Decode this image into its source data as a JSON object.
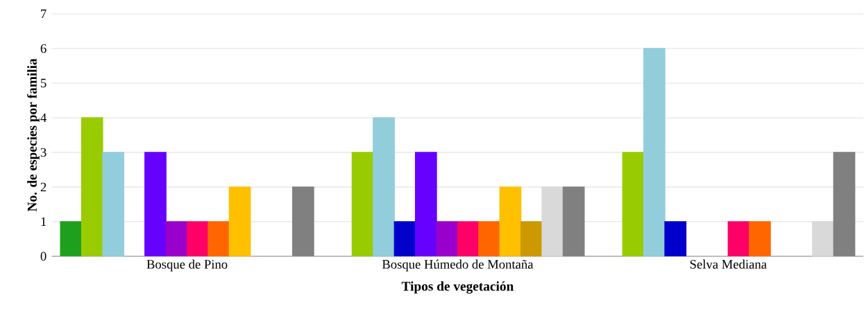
{
  "chart_data": {
    "type": "bar",
    "xlabel": "Tipos de vegetación",
    "ylabel": "No. de especies por familia",
    "categories": [
      "Bosque de Pino",
      "Bosque Húmedo de Montaña",
      "Selva Mediana"
    ],
    "series": [
      {
        "color": "#1ea01e",
        "values": [
          1,
          null,
          null
        ]
      },
      {
        "color": "#99cc00",
        "values": [
          4,
          3,
          3
        ]
      },
      {
        "color": "#92cddc",
        "values": [
          3,
          4,
          6
        ]
      },
      {
        "color": "#0000cc",
        "values": [
          null,
          1,
          1
        ]
      },
      {
        "color": "#6600ff",
        "values": [
          3,
          3,
          null
        ]
      },
      {
        "color": "#9900cc",
        "values": [
          1,
          1,
          null
        ]
      },
      {
        "color": "#ff0066",
        "values": [
          1,
          1,
          1
        ]
      },
      {
        "color": "#ff6600",
        "values": [
          1,
          1,
          1
        ]
      },
      {
        "color": "#ffc000",
        "values": [
          2,
          2,
          null
        ]
      },
      {
        "color": "#cc9900",
        "values": [
          null,
          1,
          null
        ]
      },
      {
        "color": "#d9d9d9",
        "values": [
          null,
          2,
          1
        ]
      },
      {
        "color": "#808080",
        "values": [
          2,
          2,
          3
        ]
      }
    ],
    "ylim": [
      0,
      7
    ],
    "yticks": [
      0,
      1,
      2,
      3,
      4,
      5,
      6,
      7
    ],
    "grid": "y"
  }
}
